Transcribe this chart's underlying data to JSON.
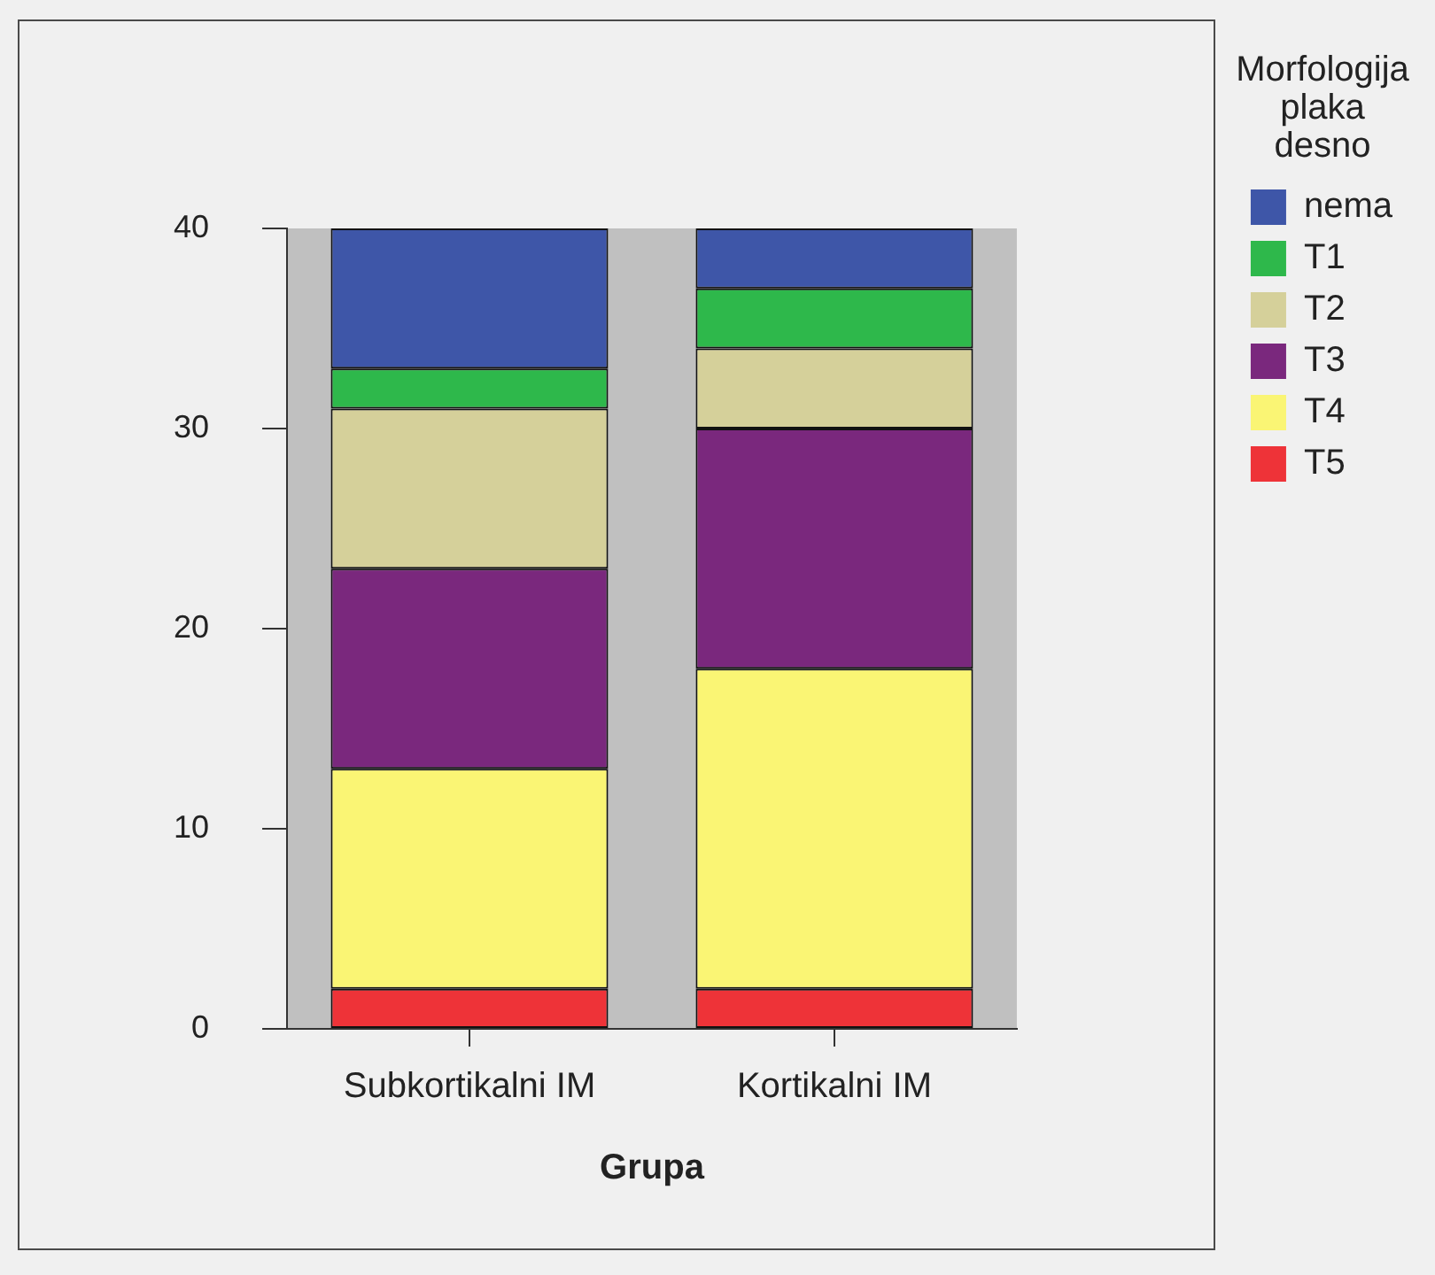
{
  "chart_data": {
    "type": "bar",
    "stacked": true,
    "categories": [
      "Subkortikalni IM",
      "Kortikalni IM"
    ],
    "xlabel": "Grupa",
    "legend_title": "Morfologija plaka desno",
    "series": [
      {
        "name": "T5",
        "color": "#ee3338",
        "values": [
          2,
          2
        ]
      },
      {
        "name": "T4",
        "color": "#faf574",
        "values": [
          11,
          16
        ]
      },
      {
        "name": "T3",
        "color": "#7a287d",
        "values": [
          10,
          12
        ]
      },
      {
        "name": "T2",
        "color": "#d5d09a",
        "values": [
          8,
          4
        ]
      },
      {
        "name": "T1",
        "color": "#2eb84b",
        "values": [
          2,
          3
        ]
      },
      {
        "name": "nema",
        "color": "#3e56a8",
        "values": [
          7,
          3
        ]
      }
    ],
    "ylim": [
      0,
      40
    ],
    "yticks": [
      0,
      10,
      20,
      30,
      40
    ],
    "grid": false,
    "legend": "right"
  }
}
